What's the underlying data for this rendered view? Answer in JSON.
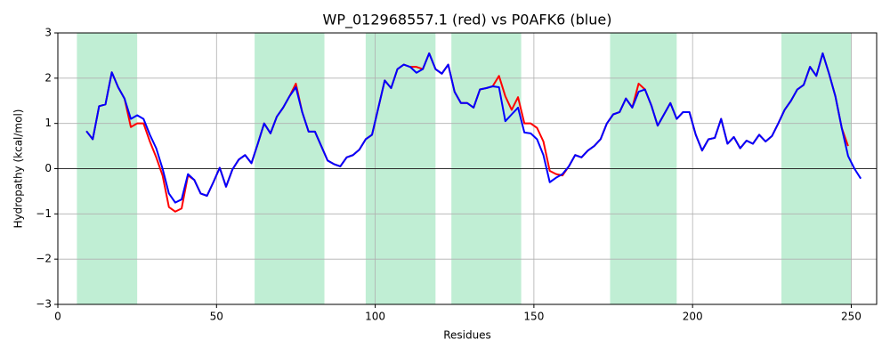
{
  "chart_data": {
    "type": "line",
    "title": "WP_012968557.1 (red) vs P0AFK6 (blue)",
    "xlabel": "Residues",
    "ylabel": "Hydropathy (kcal/mol)",
    "xlim": [
      0,
      258
    ],
    "ylim": [
      -3,
      3
    ],
    "xticks": [
      0,
      50,
      100,
      150,
      200,
      250
    ],
    "yticks": [
      {
        "value": -3,
        "label": "−3"
      },
      {
        "value": -2,
        "label": "−2"
      },
      {
        "value": -1,
        "label": "−1"
      },
      0,
      1,
      2,
      3
    ],
    "grid": true,
    "span_color": "#c0eed4",
    "spans": [
      [
        6,
        25
      ],
      [
        62,
        84
      ],
      [
        97,
        119
      ],
      [
        124,
        146
      ],
      [
        174,
        195
      ],
      [
        228,
        250
      ]
    ],
    "x": [
      9,
      11,
      13,
      15,
      17,
      19,
      21,
      23,
      25,
      27,
      29,
      31,
      33,
      35,
      37,
      39,
      41,
      43,
      45,
      47,
      49,
      51,
      53,
      55,
      57,
      59,
      61,
      63,
      65,
      67,
      69,
      71,
      73,
      75,
      77,
      79,
      81,
      83,
      85,
      87,
      89,
      91,
      93,
      95,
      97,
      99,
      101,
      103,
      105,
      107,
      109,
      111,
      113,
      115,
      117,
      119,
      121,
      123,
      125,
      127,
      129,
      131,
      133,
      135,
      137,
      139,
      141,
      143,
      145,
      147,
      149,
      151,
      153,
      155,
      157,
      159,
      161,
      163,
      165,
      167,
      169,
      171,
      173,
      175,
      177,
      179,
      181,
      183,
      185,
      187,
      189,
      191,
      193,
      195,
      197,
      199,
      201,
      203,
      205,
      207,
      209,
      211,
      213,
      215,
      217,
      219,
      221,
      223,
      225,
      227,
      229,
      231,
      233,
      235,
      237,
      239,
      241,
      243,
      245,
      247,
      249,
      251,
      253
    ],
    "series": [
      {
        "name": "WP_012968557.1",
        "color": "#ff0000",
        "values": [
          0.83,
          0.65,
          1.38,
          1.42,
          2.13,
          1.8,
          1.55,
          0.92,
          1.0,
          1.0,
          0.6,
          0.25,
          -0.15,
          -0.85,
          -0.95,
          -0.88,
          -0.15,
          -0.25,
          -0.55,
          -0.6,
          -0.3,
          0.02,
          -0.4,
          -0.02,
          0.2,
          0.3,
          0.12,
          0.55,
          1.0,
          0.78,
          1.15,
          1.35,
          1.6,
          1.88,
          1.25,
          0.82,
          0.82,
          0.5,
          0.18,
          0.1,
          0.05,
          0.25,
          0.3,
          0.42,
          0.65,
          0.75,
          1.35,
          1.95,
          1.78,
          2.2,
          2.3,
          2.25,
          2.25,
          2.2,
          2.55,
          2.2,
          2.1,
          2.3,
          1.7,
          1.45,
          1.45,
          1.35,
          1.75,
          1.78,
          1.82,
          2.05,
          1.6,
          1.3,
          1.58,
          1.0,
          1.0,
          0.9,
          0.6,
          -0.05,
          -0.12,
          -0.15,
          0.05,
          0.3,
          0.25,
          0.4,
          0.5,
          0.65,
          1.0,
          1.2,
          1.25,
          1.55,
          1.35,
          1.88,
          1.75,
          1.4,
          0.95,
          1.2,
          1.45,
          1.1,
          1.25,
          1.25,
          0.75,
          0.4,
          0.65,
          0.68,
          1.1,
          0.55,
          0.7,
          0.45,
          0.62,
          0.55,
          0.75,
          0.6,
          0.72,
          1.0,
          1.3,
          1.5,
          1.75,
          1.85,
          2.25,
          2.05,
          2.55,
          2.1,
          1.6,
          0.9,
          0.5,
          null,
          null
        ]
      },
      {
        "name": "P0AFK6",
        "color": "#0000ff",
        "values": [
          0.83,
          0.65,
          1.38,
          1.42,
          2.13,
          1.8,
          1.55,
          1.1,
          1.18,
          1.1,
          0.75,
          0.45,
          0.0,
          -0.55,
          -0.75,
          -0.68,
          -0.12,
          -0.25,
          -0.55,
          -0.6,
          -0.3,
          0.02,
          -0.4,
          -0.02,
          0.2,
          0.3,
          0.12,
          0.55,
          1.0,
          0.78,
          1.15,
          1.35,
          1.6,
          1.8,
          1.25,
          0.82,
          0.82,
          0.5,
          0.18,
          0.1,
          0.05,
          0.25,
          0.3,
          0.42,
          0.65,
          0.75,
          1.35,
          1.95,
          1.78,
          2.2,
          2.3,
          2.25,
          2.12,
          2.2,
          2.55,
          2.2,
          2.1,
          2.3,
          1.7,
          1.45,
          1.45,
          1.35,
          1.75,
          1.78,
          1.82,
          1.8,
          1.05,
          1.2,
          1.35,
          0.8,
          0.78,
          0.65,
          0.3,
          -0.3,
          -0.2,
          -0.12,
          0.05,
          0.3,
          0.25,
          0.4,
          0.5,
          0.65,
          1.0,
          1.2,
          1.25,
          1.55,
          1.35,
          1.7,
          1.75,
          1.4,
          0.95,
          1.2,
          1.45,
          1.1,
          1.25,
          1.25,
          0.75,
          0.4,
          0.65,
          0.68,
          1.1,
          0.55,
          0.7,
          0.45,
          0.62,
          0.55,
          0.75,
          0.6,
          0.72,
          1.0,
          1.3,
          1.5,
          1.75,
          1.85,
          2.25,
          2.05,
          2.55,
          2.1,
          1.6,
          0.9,
          0.28,
          0.0,
          -0.22
        ]
      }
    ]
  }
}
